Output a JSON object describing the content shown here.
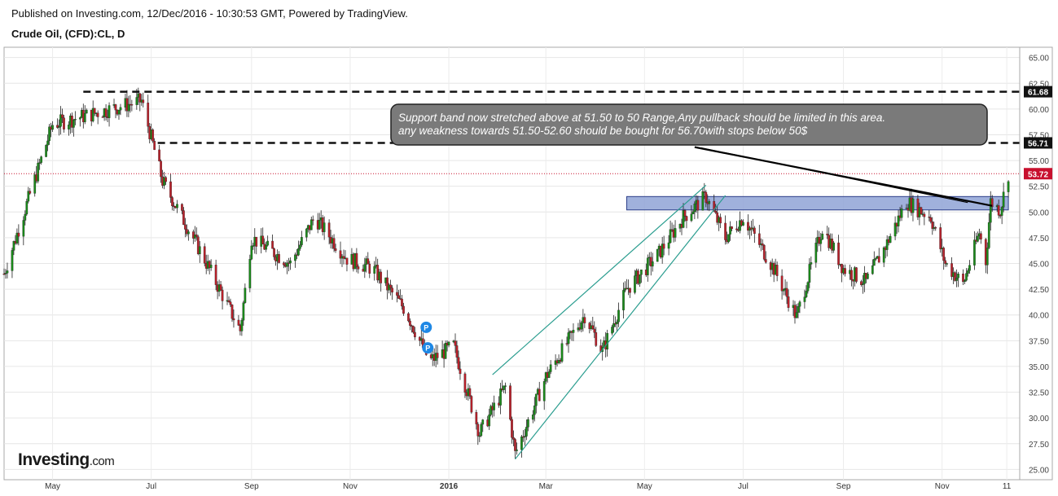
{
  "header": {
    "published": "Published on Investing.com, 12/Dec/2016 - 10:30:53 GMT, Powered by TradingView.",
    "symbol": "Crude Oil, (CFD):CL, D"
  },
  "brand": {
    "name": "Investing",
    "suffix": ".com"
  },
  "annotation": {
    "line1": "Support band now stretched above at 51.50 to 50 Range,Any pullback should be limited in this area.",
    "line2": "any weakness towards 51.50-52.60 should be bought for 56.70with stops below 50$"
  },
  "markers": [
    "P",
    "P"
  ],
  "colors": {
    "up": "#1a8a1a",
    "down": "#b8202a",
    "current_price_badge": "#c8102e",
    "resistance_badge": "#111111",
    "support_band": "#8fa3d6",
    "annotation_bg": "#7a7a7a",
    "channel": "#2a9d8f",
    "marker": "#1e88e5"
  },
  "chart_data": {
    "type": "candlestick",
    "x_axis": {
      "labels": [
        "May",
        "Jul",
        "Sep",
        "Nov",
        "2016",
        "Mar",
        "May",
        "Jul",
        "Sep",
        "Nov",
        "11"
      ]
    },
    "y_axis": {
      "range": [
        24,
        66
      ],
      "ticks": [
        25.0,
        27.5,
        30.0,
        32.5,
        35.0,
        37.5,
        40.0,
        42.5,
        45.0,
        47.5,
        50.0,
        52.5,
        55.0,
        57.5,
        60.0,
        62.5,
        65.0
      ],
      "tick_labels": [
        "25.00",
        "27.50",
        "30.00",
        "32.50",
        "35.00",
        "37.50",
        "40.00",
        "42.50",
        "45.00",
        "47.50",
        "50.00",
        "52.50",
        "55.00",
        "57.50",
        "60.00",
        "62.50",
        "65.00"
      ]
    },
    "price_levels": [
      {
        "value": 61.68,
        "label": "61.68",
        "style": "dashed"
      },
      {
        "value": 56.71,
        "label": "56.71",
        "style": "dashed"
      },
      {
        "value": 53.72,
        "label": "53.72",
        "style": "current"
      }
    ],
    "support_band": {
      "from": 50.2,
      "to": 51.5,
      "x_start": "2016-04-20",
      "x_end": "2016-12-12"
    },
    "trend_path": [
      [
        "2015-04-01",
        44.0
      ],
      [
        "2015-05-01",
        58.5
      ],
      [
        "2015-05-25",
        59.5
      ],
      [
        "2015-06-25",
        60.8
      ],
      [
        "2015-07-08",
        53.0
      ],
      [
        "2015-08-01",
        46.0
      ],
      [
        "2015-08-25",
        38.5
      ],
      [
        "2015-09-01",
        47.5
      ],
      [
        "2015-09-25",
        45.0
      ],
      [
        "2015-10-10",
        49.5
      ],
      [
        "2015-10-30",
        45.5
      ],
      [
        "2015-11-15",
        44.5
      ],
      [
        "2015-12-05",
        40.5
      ],
      [
        "2015-12-20",
        35.5
      ],
      [
        "2016-01-04",
        37.0
      ],
      [
        "2016-01-20",
        28.5
      ],
      [
        "2016-02-05",
        33.0
      ],
      [
        "2016-02-11",
        26.5
      ],
      [
        "2016-03-01",
        34.0
      ],
      [
        "2016-03-25",
        40.0
      ],
      [
        "2016-04-05",
        36.5
      ],
      [
        "2016-04-20",
        42.5
      ],
      [
        "2016-05-10",
        46.0
      ],
      [
        "2016-05-25",
        49.5
      ],
      [
        "2016-06-08",
        51.5
      ],
      [
        "2016-06-20",
        47.5
      ],
      [
        "2016-07-01",
        49.5
      ],
      [
        "2016-07-20",
        44.5
      ],
      [
        "2016-08-03",
        39.8
      ],
      [
        "2016-08-19",
        48.5
      ],
      [
        "2016-09-01",
        44.5
      ],
      [
        "2016-09-15",
        43.2
      ],
      [
        "2016-09-28",
        47.0
      ],
      [
        "2016-10-10",
        51.0
      ],
      [
        "2016-10-25",
        49.5
      ],
      [
        "2016-11-03",
        45.0
      ],
      [
        "2016-11-14",
        43.0
      ],
      [
        "2016-11-24",
        48.0
      ],
      [
        "2016-11-28",
        45.2
      ],
      [
        "2016-12-01",
        51.0
      ],
      [
        "2016-12-07",
        50.2
      ],
      [
        "2016-12-12",
        53.72
      ]
    ],
    "trendlines": [
      {
        "from": [
          "2016-01-28",
          34.2
        ],
        "to": [
          "2016-06-08",
          52.6
        ],
        "kind": "channel"
      },
      {
        "from": [
          "2016-02-11",
          26.0
        ],
        "to": [
          "2016-06-20",
          51.6
        ],
        "kind": "channel"
      },
      {
        "from": [
          "2016-06-01",
          56.3
        ],
        "to": [
          "2016-12-02",
          50.6
        ],
        "kind": "pointer"
      }
    ],
    "marker_points": [
      [
        "2015-12-18",
        38.8
      ],
      [
        "2015-12-19",
        36.8
      ]
    ],
    "grid": true
  }
}
